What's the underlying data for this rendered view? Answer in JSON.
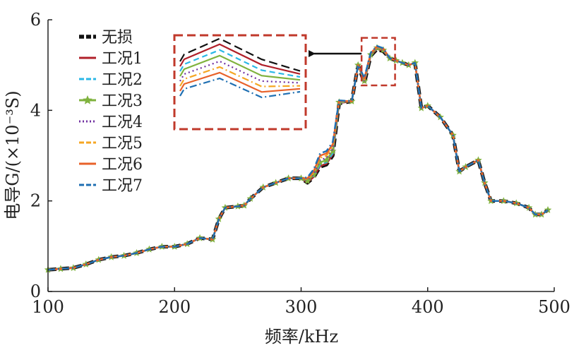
{
  "chart_data": {
    "type": "line",
    "xlabel": "频率/kHz",
    "ylabel": "电导G/(×10⁻³S)",
    "xlim": [
      100,
      500
    ],
    "ylim": [
      0,
      6
    ],
    "xticks": [
      "100",
      "200",
      "300",
      "400",
      "500"
    ],
    "yticks": [
      "0",
      "2",
      "4",
      "6"
    ],
    "grid": false,
    "legend_position": "top-left",
    "x": [
      100,
      110,
      120,
      130,
      140,
      150,
      160,
      170,
      180,
      190,
      200,
      210,
      220,
      230,
      235,
      240,
      250,
      255,
      260,
      270,
      280,
      290,
      300,
      305,
      310,
      315,
      320,
      325,
      330,
      340,
      345,
      350,
      355,
      360,
      365,
      370,
      375,
      380,
      385,
      390,
      395,
      400,
      410,
      420,
      425,
      430,
      440,
      445,
      450,
      460,
      470,
      480,
      485,
      490,
      495
    ],
    "series": [
      {
        "name": "无损",
        "color": "#111111",
        "style": "dashed-bold",
        "values": [
          0.48,
          0.5,
          0.52,
          0.6,
          0.7,
          0.76,
          0.79,
          0.85,
          0.93,
          0.99,
          0.99,
          1.05,
          1.18,
          1.15,
          1.6,
          1.85,
          1.88,
          1.9,
          2.05,
          2.3,
          2.4,
          2.5,
          2.5,
          2.4,
          2.52,
          2.75,
          2.8,
          3.0,
          4.15,
          4.2,
          5.0,
          4.6,
          5.2,
          5.35,
          5.3,
          5.15,
          5.1,
          5.05,
          5.0,
          5.05,
          4.05,
          4.1,
          3.85,
          3.45,
          2.65,
          2.75,
          2.9,
          2.4,
          2.0,
          2.0,
          1.95,
          1.85,
          1.7,
          1.7,
          1.8
        ]
      },
      {
        "name": "工况1",
        "color": "#b0202a",
        "style": "solid",
        "values": [
          0.48,
          0.5,
          0.52,
          0.6,
          0.7,
          0.76,
          0.79,
          0.85,
          0.93,
          0.99,
          0.99,
          1.05,
          1.18,
          1.15,
          1.6,
          1.85,
          1.88,
          1.9,
          2.05,
          2.3,
          2.4,
          2.5,
          2.5,
          2.41,
          2.53,
          2.77,
          2.82,
          3.02,
          4.16,
          4.2,
          5.0,
          4.62,
          5.21,
          5.36,
          5.31,
          5.15,
          5.1,
          5.05,
          5.0,
          5.05,
          4.05,
          4.1,
          3.85,
          3.45,
          2.65,
          2.75,
          2.9,
          2.4,
          2.0,
          2.0,
          1.95,
          1.85,
          1.7,
          1.7,
          1.8
        ]
      },
      {
        "name": "工况2",
        "color": "#2ab7e6",
        "style": "dashed",
        "values": [
          0.48,
          0.5,
          0.52,
          0.6,
          0.7,
          0.76,
          0.79,
          0.85,
          0.93,
          0.99,
          0.99,
          1.05,
          1.18,
          1.15,
          1.6,
          1.85,
          1.88,
          1.9,
          2.05,
          2.3,
          2.4,
          2.5,
          2.5,
          2.42,
          2.55,
          2.8,
          2.85,
          3.05,
          4.17,
          4.2,
          5.0,
          4.63,
          5.22,
          5.37,
          5.32,
          5.15,
          5.1,
          5.05,
          5.0,
          5.05,
          4.05,
          4.1,
          3.85,
          3.45,
          2.65,
          2.75,
          2.9,
          2.4,
          2.0,
          2.0,
          1.95,
          1.85,
          1.7,
          1.7,
          1.8
        ]
      },
      {
        "name": "工况3",
        "color": "#7fb23e",
        "style": "solid-star",
        "values": [
          0.48,
          0.5,
          0.52,
          0.6,
          0.7,
          0.76,
          0.79,
          0.85,
          0.93,
          0.99,
          0.99,
          1.05,
          1.18,
          1.15,
          1.6,
          1.85,
          1.88,
          1.9,
          2.05,
          2.3,
          2.4,
          2.5,
          2.5,
          2.44,
          2.58,
          2.85,
          2.9,
          3.1,
          4.18,
          4.2,
          5.0,
          4.65,
          5.23,
          5.38,
          5.33,
          5.15,
          5.1,
          5.05,
          5.0,
          5.05,
          4.05,
          4.1,
          3.85,
          3.45,
          2.65,
          2.75,
          2.9,
          2.4,
          2.0,
          2.0,
          1.95,
          1.85,
          1.7,
          1.7,
          1.8
        ]
      },
      {
        "name": "工况4",
        "color": "#7030a0",
        "style": "dotted",
        "values": [
          0.48,
          0.5,
          0.52,
          0.6,
          0.7,
          0.76,
          0.79,
          0.85,
          0.93,
          0.99,
          0.99,
          1.05,
          1.18,
          1.15,
          1.6,
          1.85,
          1.88,
          1.9,
          2.05,
          2.3,
          2.4,
          2.5,
          2.5,
          2.46,
          2.6,
          2.9,
          2.95,
          3.15,
          4.19,
          4.2,
          5.0,
          4.66,
          5.24,
          5.39,
          5.34,
          5.15,
          5.1,
          5.05,
          5.0,
          5.05,
          4.05,
          4.1,
          3.85,
          3.45,
          2.65,
          2.75,
          2.9,
          2.4,
          2.0,
          2.0,
          1.95,
          1.85,
          1.7,
          1.7,
          1.8
        ]
      },
      {
        "name": "工况5",
        "color": "#f5a623",
        "style": "dashdot",
        "values": [
          0.48,
          0.5,
          0.52,
          0.6,
          0.7,
          0.76,
          0.79,
          0.85,
          0.93,
          0.99,
          0.99,
          1.05,
          1.18,
          1.15,
          1.6,
          1.85,
          1.88,
          1.9,
          2.05,
          2.3,
          2.4,
          2.5,
          2.5,
          2.48,
          2.63,
          2.95,
          3.0,
          3.2,
          4.2,
          4.2,
          5.0,
          4.68,
          5.25,
          5.4,
          5.35,
          5.15,
          5.1,
          5.05,
          5.0,
          5.05,
          4.05,
          4.1,
          3.85,
          3.45,
          2.65,
          2.75,
          2.9,
          2.4,
          2.0,
          2.0,
          1.95,
          1.85,
          1.7,
          1.7,
          1.8
        ]
      },
      {
        "name": "工况6",
        "color": "#e8622a",
        "style": "solid",
        "values": [
          0.48,
          0.5,
          0.52,
          0.6,
          0.7,
          0.76,
          0.79,
          0.85,
          0.93,
          0.99,
          0.99,
          1.05,
          1.18,
          1.15,
          1.6,
          1.85,
          1.88,
          1.9,
          2.05,
          2.3,
          2.4,
          2.5,
          2.5,
          2.5,
          2.66,
          3.0,
          3.05,
          3.25,
          4.21,
          4.2,
          5.0,
          4.7,
          5.26,
          5.41,
          5.36,
          5.15,
          5.1,
          5.05,
          5.0,
          5.05,
          4.05,
          4.1,
          3.85,
          3.45,
          2.65,
          2.75,
          2.9,
          2.4,
          2.0,
          2.0,
          1.95,
          1.85,
          1.7,
          1.7,
          1.8
        ]
      },
      {
        "name": "工况7",
        "color": "#1f6fb2",
        "style": "dashdot",
        "values": [
          0.48,
          0.5,
          0.52,
          0.6,
          0.7,
          0.76,
          0.79,
          0.85,
          0.93,
          0.99,
          0.99,
          1.05,
          1.18,
          1.15,
          1.6,
          1.85,
          1.88,
          1.9,
          2.05,
          2.3,
          2.4,
          2.5,
          2.5,
          2.52,
          2.7,
          3.05,
          3.1,
          3.3,
          4.22,
          4.2,
          5.0,
          4.72,
          5.27,
          5.42,
          5.37,
          5.15,
          5.1,
          5.05,
          5.0,
          5.05,
          4.05,
          4.1,
          3.85,
          3.45,
          2.65,
          2.75,
          2.9,
          2.4,
          2.0,
          2.0,
          1.95,
          1.85,
          1.7,
          1.7,
          1.8
        ]
      }
    ],
    "inset": {
      "description_of_region": "zoom of peak near 350-370 kHz",
      "xrange": [
        350,
        372
      ],
      "yrange": [
        4.55,
        5.6
      ],
      "frame_color": "#c0392b"
    }
  }
}
